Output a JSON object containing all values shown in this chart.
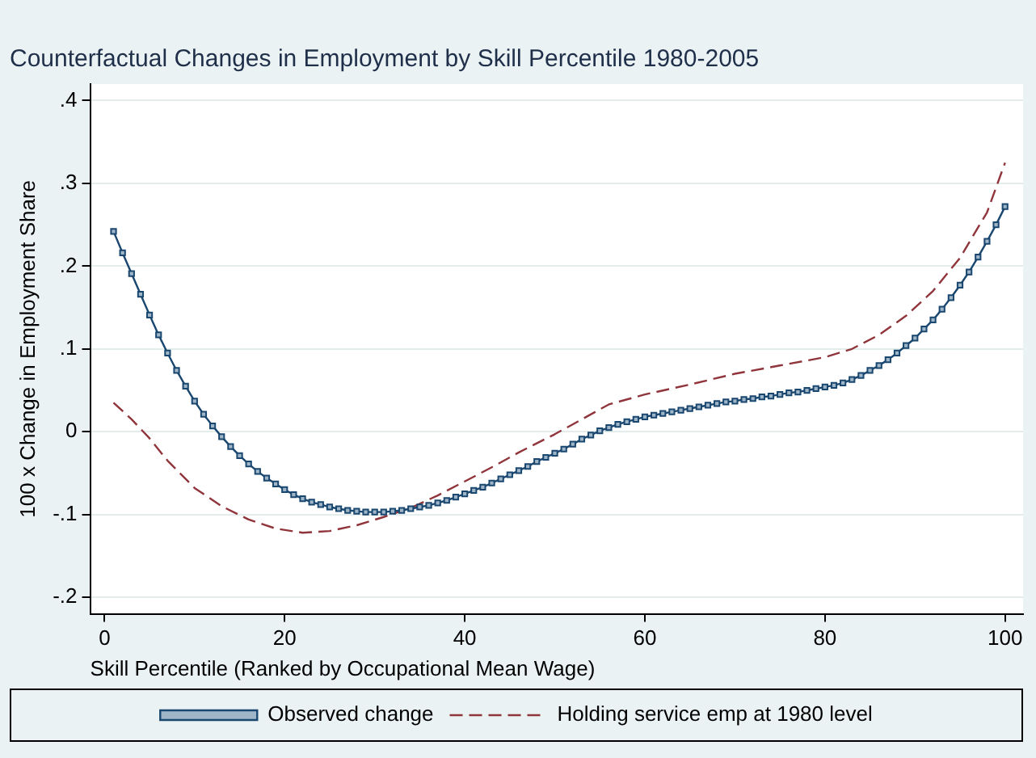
{
  "chart_data": {
    "type": "line",
    "title": "Counterfactual Changes in Employment by Skill Percentile 1980-2005",
    "xlabel": "Skill Percentile (Ranked by Occupational Mean Wage)",
    "ylabel": "100 x Change in Employment Share",
    "xlim": [
      -1.6,
      102
    ],
    "xticks": [
      0,
      20,
      40,
      60,
      80,
      100
    ],
    "ylim": [
      -0.22,
      0.42
    ],
    "yticks": [
      {
        "value": -0.2,
        "label": "-.2"
      },
      {
        "value": -0.1,
        "label": "-.1"
      },
      0,
      {
        "value": 0.1,
        "label": ".1"
      },
      {
        "value": 0.2,
        "label": ".2"
      },
      {
        "value": 0.3,
        "label": ".3"
      },
      {
        "value": 0.4,
        "label": ".4"
      }
    ],
    "grid": "y",
    "legend": "bottom",
    "series": [
      {
        "name": "Observed change",
        "color": "#1a476f",
        "marker": "square",
        "line_style": "solid",
        "x": [
          1,
          2,
          3,
          4,
          5,
          6,
          7,
          8,
          9,
          10,
          11,
          12,
          13,
          14,
          15,
          16,
          17,
          18,
          19,
          20,
          21,
          22,
          23,
          24,
          25,
          26,
          27,
          28,
          29,
          30,
          31,
          32,
          33,
          34,
          35,
          36,
          37,
          38,
          39,
          40,
          41,
          42,
          43,
          44,
          45,
          46,
          47,
          48,
          49,
          50,
          51,
          52,
          53,
          54,
          55,
          56,
          57,
          58,
          59,
          60,
          61,
          62,
          63,
          64,
          65,
          66,
          67,
          68,
          69,
          70,
          71,
          72,
          73,
          74,
          75,
          76,
          77,
          78,
          79,
          80,
          81,
          82,
          83,
          84,
          85,
          86,
          87,
          88,
          89,
          90,
          91,
          92,
          93,
          94,
          95,
          96,
          97,
          98,
          99,
          100
        ],
        "values": [
          0.242,
          0.216,
          0.191,
          0.166,
          0.141,
          0.117,
          0.095,
          0.074,
          0.055,
          0.037,
          0.021,
          0.007,
          -0.006,
          -0.018,
          -0.029,
          -0.039,
          -0.048,
          -0.056,
          -0.063,
          -0.07,
          -0.076,
          -0.081,
          -0.085,
          -0.088,
          -0.091,
          -0.093,
          -0.095,
          -0.096,
          -0.097,
          -0.097,
          -0.097,
          -0.096,
          -0.095,
          -0.093,
          -0.091,
          -0.089,
          -0.086,
          -0.083,
          -0.079,
          -0.075,
          -0.071,
          -0.067,
          -0.062,
          -0.057,
          -0.052,
          -0.047,
          -0.042,
          -0.036,
          -0.031,
          -0.026,
          -0.021,
          -0.015,
          -0.009,
          -0.004,
          0.001,
          0.005,
          0.009,
          0.012,
          0.015,
          0.018,
          0.02,
          0.022,
          0.024,
          0.026,
          0.028,
          0.03,
          0.032,
          0.034,
          0.036,
          0.037,
          0.039,
          0.04,
          0.042,
          0.043,
          0.045,
          0.047,
          0.048,
          0.05,
          0.052,
          0.054,
          0.056,
          0.059,
          0.063,
          0.068,
          0.074,
          0.08,
          0.087,
          0.095,
          0.104,
          0.113,
          0.124,
          0.135,
          0.148,
          0.162,
          0.177,
          0.193,
          0.211,
          0.23,
          0.25,
          0.272
        ]
      },
      {
        "name": "Holding service emp at 1980 level",
        "color": "#90353b",
        "marker": "none",
        "line_style": "dashed",
        "x": [
          1,
          3,
          5,
          7,
          10,
          13,
          16,
          19,
          22,
          25,
          28,
          31,
          34,
          37,
          40,
          43,
          46,
          50,
          53,
          56,
          60,
          65,
          70,
          75,
          80,
          83,
          86,
          89,
          92,
          95,
          98,
          100
        ],
        "values": [
          0.035,
          0.015,
          -0.008,
          -0.035,
          -0.068,
          -0.09,
          -0.106,
          -0.117,
          -0.122,
          -0.12,
          -0.113,
          -0.103,
          -0.092,
          -0.077,
          -0.06,
          -0.043,
          -0.025,
          -0.003,
          0.015,
          0.033,
          0.045,
          0.057,
          0.07,
          0.08,
          0.09,
          0.1,
          0.117,
          0.14,
          0.17,
          0.21,
          0.265,
          0.325
        ]
      }
    ]
  }
}
